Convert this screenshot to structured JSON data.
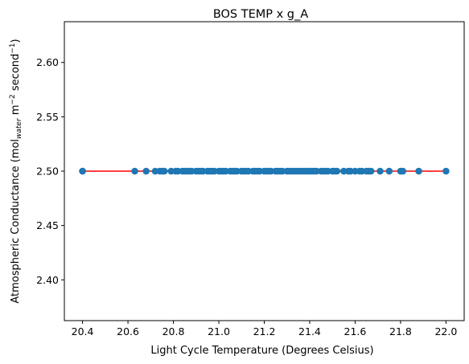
{
  "chart_data": {
    "type": "scatter",
    "title": "BOS TEMP x g_A",
    "xlabel": "Light Cycle Temperature (Degrees Celsius)",
    "ylabel": {
      "base": "Atmospheric Conductance (mol",
      "sub": "water",
      "mid1": " m",
      "sup1": "−2",
      "mid2": " second",
      "sup2": "−1",
      "end": ")"
    },
    "xlim": [
      20.32,
      22.08
    ],
    "ylim": [
      2.3625,
      2.6375
    ],
    "xticks": [
      "20.4",
      "20.6",
      "20.8",
      "21.0",
      "21.2",
      "21.4",
      "21.6",
      "21.8",
      "22.0"
    ],
    "yticks": [
      "2.40",
      "2.45",
      "2.50",
      "2.55",
      "2.60"
    ],
    "grid": false,
    "point_color": "#1f77b4",
    "line_color": "#ff0000",
    "fit_line": {
      "x": [
        20.4,
        22.0
      ],
      "y": [
        2.5,
        2.5
      ]
    },
    "points": {
      "y": 2.5,
      "x": [
        20.4,
        20.4,
        20.63,
        20.68,
        20.72,
        20.74,
        20.75,
        20.76,
        20.79,
        20.81,
        20.82,
        20.84,
        20.85,
        20.86,
        20.87,
        20.88,
        20.9,
        20.91,
        20.92,
        20.93,
        20.95,
        20.96,
        20.97,
        20.98,
        21.0,
        21.01,
        21.02,
        21.03,
        21.05,
        21.06,
        21.07,
        21.08,
        21.1,
        21.11,
        21.12,
        21.13,
        21.15,
        21.16,
        21.17,
        21.18,
        21.2,
        21.21,
        21.22,
        21.23,
        21.25,
        21.26,
        21.27,
        21.28,
        21.3,
        21.31,
        21.32,
        21.33,
        21.34,
        21.35,
        21.36,
        21.37,
        21.38,
        21.39,
        21.4,
        21.41,
        21.42,
        21.43,
        21.45,
        21.46,
        21.47,
        21.48,
        21.5,
        21.51,
        21.52,
        21.55,
        21.57,
        21.58,
        21.6,
        21.62,
        21.63,
        21.65,
        21.66,
        21.67,
        21.71,
        21.75,
        21.8,
        21.81,
        21.88,
        22.0
      ]
    }
  }
}
